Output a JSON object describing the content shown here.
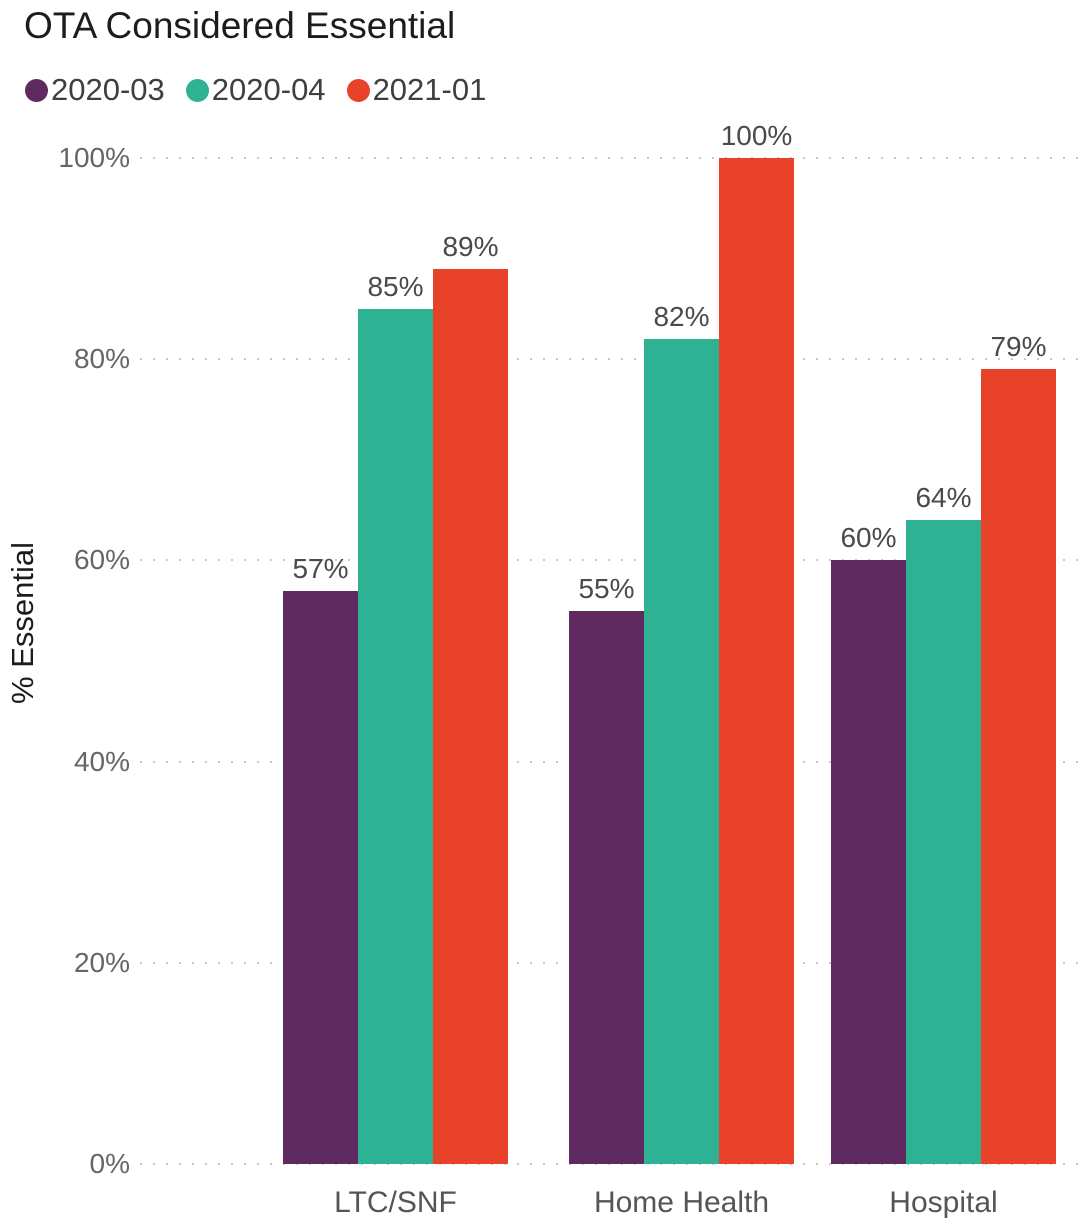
{
  "title": "OTA Considered Essential",
  "y_axis": {
    "label": "% Essential",
    "ticks": [
      "0%",
      "20%",
      "40%",
      "60%",
      "80%",
      "100%"
    ]
  },
  "x_axis": {
    "categories": [
      "LTC/SNF",
      "Home Health",
      "Hospital"
    ]
  },
  "legend": {
    "items": [
      {
        "label": "2020-03",
        "color": "#5E2A60"
      },
      {
        "label": "2020-04",
        "color": "#2FB294"
      },
      {
        "label": "2021-01",
        "color": "#E8432A"
      }
    ]
  },
  "chart_data": {
    "type": "bar",
    "title": "OTA Considered Essential",
    "categories": [
      "LTC/SNF",
      "Home Health",
      "Hospital"
    ],
    "series": [
      {
        "name": "2020-03",
        "color": "#5E2A60",
        "values": [
          57,
          55,
          60
        ]
      },
      {
        "name": "2020-04",
        "color": "#2FB294",
        "values": [
          85,
          82,
          64
        ]
      },
      {
        "name": "2021-01",
        "color": "#E8432A",
        "values": [
          89,
          100,
          79
        ]
      }
    ],
    "unit": "%",
    "value_labels": {
      "LTC/SNF": [
        "57%",
        "85%",
        "89%"
      ],
      "Home Health": [
        "55%",
        "82%",
        "100%"
      ],
      "Hospital": [
        "60%",
        "64%",
        "79%"
      ]
    },
    "ylabel": "% Essential",
    "ylim": [
      0,
      100
    ],
    "ytick_values": [
      0,
      20,
      40,
      60,
      80,
      100
    ],
    "grid": "horizontal-dotted",
    "legend_position": "top-left",
    "bar_value_labels_shown": true
  },
  "colors": {
    "background": "#ffffff",
    "grid": "#c8c8c8",
    "title_text": "#1c1c1c",
    "tick_text": "#666666",
    "value_label_text": "#4a4a4a",
    "category_text": "#555555",
    "legend_text": "#3f3f3f"
  }
}
